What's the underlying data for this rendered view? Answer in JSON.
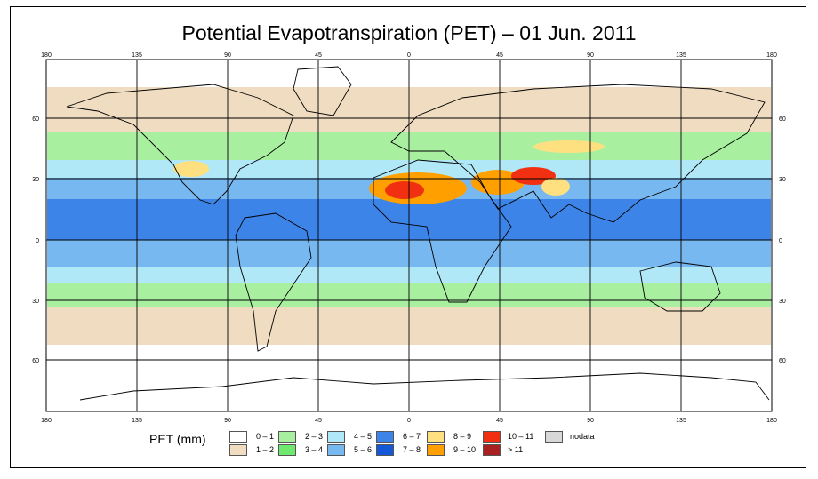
{
  "title": "Potential Evapotranspiration (PET) – 01 Jun. 2011",
  "axes": {
    "lon_ticks": [
      "180",
      "135",
      "90",
      "45",
      "0",
      "45",
      "90",
      "135",
      "180"
    ],
    "lat_ticks_upper": [
      "60",
      "30",
      "0"
    ],
    "lat_ticks_lower": [
      "30",
      "60"
    ]
  },
  "legend": {
    "title": "PET (mm)",
    "items": [
      {
        "label": "0 – 1",
        "color": "#ffffff"
      },
      {
        "label": "1 – 2",
        "color": "#f0dcc0"
      },
      {
        "label": "2 – 3",
        "color": "#a8f0a0"
      },
      {
        "label": "3 – 4",
        "color": "#70e870"
      },
      {
        "label": "4 – 5",
        "color": "#b0e8f8"
      },
      {
        "label": "5 – 6",
        "color": "#78b8f0"
      },
      {
        "label": "6 – 7",
        "color": "#3c84e8"
      },
      {
        "label": "7 – 8",
        "color": "#1458d8"
      },
      {
        "label": "8 – 9",
        "color": "#ffe080"
      },
      {
        "label": "9 – 10",
        "color": "#ffa000"
      },
      {
        "label": "10 – 11",
        "color": "#f03010"
      },
      {
        "label": "> 11",
        "color": "#a82020"
      },
      {
        "label": "nodata",
        "color": "#d8d8d8"
      }
    ]
  }
}
